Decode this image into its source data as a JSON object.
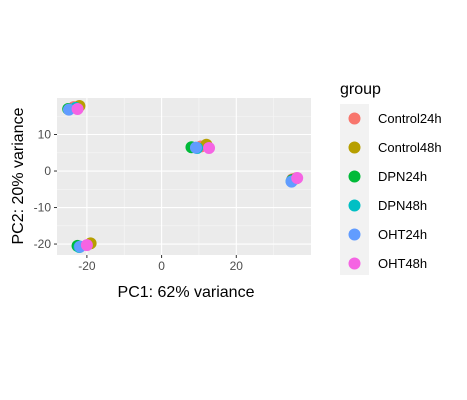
{
  "chart_data": {
    "type": "scatter",
    "xlabel": "PC1: 62% variance",
    "ylabel": "PC2: 20% variance",
    "xlim": [
      -28,
      40
    ],
    "ylim": [
      -23,
      20
    ],
    "xticks": [
      -20,
      0,
      20
    ],
    "yticks": [
      -20,
      -10,
      0,
      10
    ],
    "grid": true,
    "legend_title": "group",
    "legend_position": "right",
    "series": [
      {
        "name": "Control24h",
        "color": "#F8766D",
        "points": [
          [
            -23.5,
            17.5
          ],
          [
            10.5,
            6.7
          ],
          [
            35.0,
            -2.3
          ]
        ]
      },
      {
        "name": "Control48h",
        "color": "#B79F00",
        "points": [
          [
            -22.0,
            17.8
          ],
          [
            -19.0,
            -19.8
          ],
          [
            12.0,
            7.2
          ],
          [
            36.0,
            -2.0
          ]
        ]
      },
      {
        "name": "DPN24h",
        "color": "#00BA38",
        "points": [
          [
            -25.0,
            17.0
          ],
          [
            -22.5,
            -20.5
          ],
          [
            8.0,
            6.5
          ],
          [
            35.0,
            -2.5
          ]
        ]
      },
      {
        "name": "DPN48h",
        "color": "#00BFC4",
        "points": [
          [
            -23.0,
            17.3
          ],
          [
            -22.0,
            -20.8
          ],
          [
            9.5,
            6.3
          ],
          [
            34.8,
            -2.8
          ]
        ]
      },
      {
        "name": "OHT24h",
        "color": "#619CFF",
        "points": [
          [
            -24.8,
            16.8
          ],
          [
            -21.8,
            -20.7
          ],
          [
            9.2,
            6.4
          ],
          [
            34.8,
            -2.9
          ]
        ]
      },
      {
        "name": "OHT48h",
        "color": "#F564E3",
        "points": [
          [
            -22.5,
            17.0
          ],
          [
            -20.0,
            -20.3
          ],
          [
            12.7,
            6.3
          ],
          [
            36.3,
            -1.9
          ]
        ]
      }
    ]
  }
}
